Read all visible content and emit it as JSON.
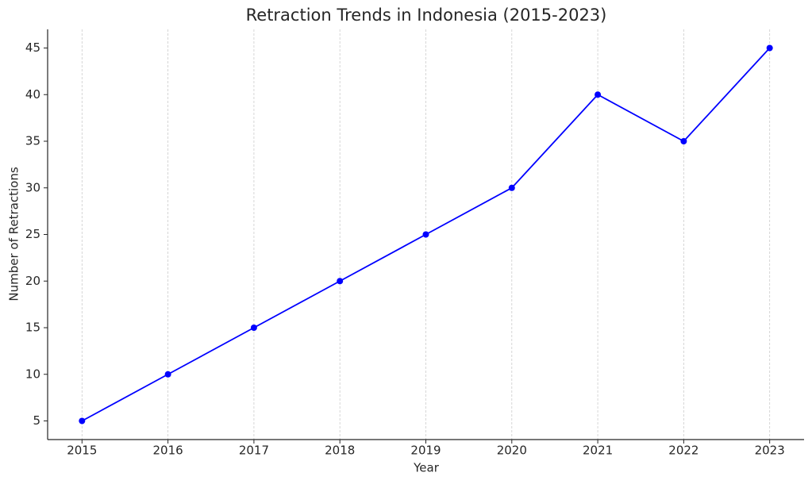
{
  "chart_data": {
    "type": "line",
    "title": "Retraction Trends in Indonesia (2015-2023)",
    "x_label": "Year",
    "y_label": "Number of Retractions",
    "x": [
      2015,
      2016,
      2017,
      2018,
      2019,
      2020,
      2021,
      2022,
      2023
    ],
    "series": [
      {
        "name": "Retractions",
        "color": "#0000ff",
        "values": [
          5,
          10,
          15,
          20,
          25,
          30,
          40,
          35,
          45
        ]
      }
    ],
    "xlim": [
      2014.6,
      2023.4
    ],
    "xticks": [
      2015,
      2016,
      2017,
      2018,
      2019,
      2020,
      2021,
      2022,
      2023
    ],
    "ylim": [
      3,
      47
    ],
    "yticks": [
      5,
      10,
      15,
      20,
      25,
      30,
      35,
      40,
      45
    ],
    "grid": "x",
    "legend": false
  }
}
